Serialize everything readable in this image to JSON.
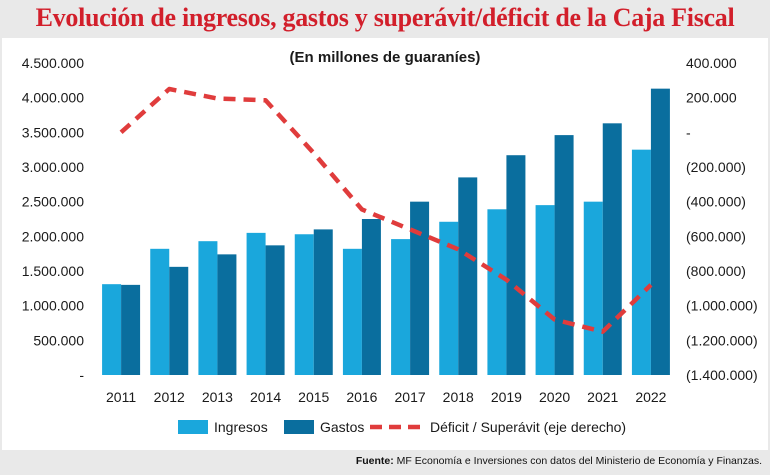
{
  "title": "Evolución de ingresos, gastos y superávit/déficit de la Caja Fiscal",
  "source": {
    "label": "Fuente:",
    "text": "MF Economía e Inversiones con datos del Ministerio de Economía y Finanzas."
  },
  "chart_data": {
    "type": "bar",
    "subtitle": "(En millones de guaraníes)",
    "categories": [
      "2011",
      "2012",
      "2013",
      "2014",
      "2015",
      "2016",
      "2017",
      "2018",
      "2019",
      "2020",
      "2021",
      "2022"
    ],
    "series": [
      {
        "name": "Ingresos",
        "type": "bar",
        "axis": "left",
        "color": "#1aa7dc",
        "values": [
          1310000,
          1820000,
          1930000,
          2050000,
          2030000,
          1820000,
          1960000,
          2210000,
          2390000,
          2450000,
          2500000,
          3250000
        ]
      },
      {
        "name": "Gastos",
        "type": "bar",
        "axis": "left",
        "color": "#0a6e9e",
        "values": [
          1300000,
          1560000,
          1740000,
          1870000,
          2100000,
          2250000,
          2500000,
          2850000,
          3170000,
          3460000,
          3630000,
          4130000
        ]
      },
      {
        "name": "Déficit / Superávit (eje derecho)",
        "type": "line",
        "axis": "right",
        "color": "#e03c3c",
        "dashed": true,
        "values": [
          0,
          250000,
          195000,
          185000,
          -120000,
          -445000,
          -560000,
          -675000,
          -850000,
          -1080000,
          -1150000,
          -880000
        ]
      }
    ],
    "y_left": {
      "ylim": [
        0,
        4500000
      ],
      "tick_labels": [
        "-",
        "500.000",
        "1.000.000",
        "1.500.000",
        "2.000.000",
        "2.500.000",
        "3.000.000",
        "3.500.000",
        "4.000.000",
        "4.500.000"
      ]
    },
    "y_right": {
      "ylim": [
        -1400000,
        400000
      ],
      "tick_labels": [
        "(1.400.000)",
        "(1.200.000)",
        "(1.000.000)",
        "(800.000)",
        "(600.000)",
        "(400.000)",
        "(200.000)",
        "-",
        "200.000",
        "400.000"
      ]
    },
    "grid": false,
    "legend_position": "bottom"
  }
}
